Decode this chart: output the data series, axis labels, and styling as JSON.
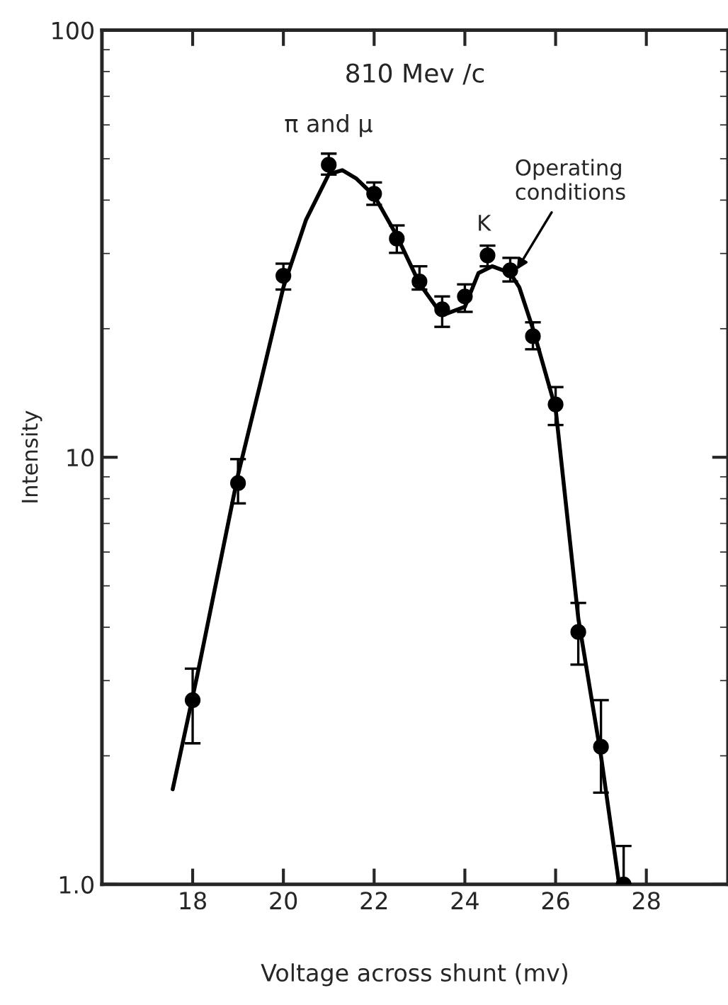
{
  "chart_data": {
    "type": "scatter",
    "title": "810 Mev /c",
    "xlabel": "Voltage across shunt (mv)",
    "ylabel": "Intensity",
    "log": "y",
    "xlim": [
      16,
      29.8
    ],
    "ylim": [
      1.0,
      100
    ],
    "xticks": [
      18,
      20,
      22,
      24,
      26,
      28
    ],
    "yticks": [
      {
        "value": 1,
        "label": "1.0"
      },
      10,
      100
    ],
    "grid": false,
    "legend": false,
    "series": [
      {
        "color": "#000000",
        "marker": "circle",
        "x": [
          18,
          19,
          20,
          21,
          22,
          22.5,
          23,
          23.5,
          24,
          24.5,
          25,
          25.5,
          26,
          26.5,
          27,
          27.5
        ],
        "values": [
          2.7,
          8.7,
          26.6,
          48.4,
          41.4,
          32.5,
          25.8,
          22.2,
          23.8,
          29.7,
          27.4,
          19.2,
          13.3,
          3.9,
          2.1,
          1.0
        ],
        "errors": [
          [
            2.14,
            3.2
          ],
          [
            7.8,
            9.9
          ],
          [
            24.7,
            28.4
          ],
          [
            45.9,
            51.4
          ],
          [
            39,
            44
          ],
          [
            30.1,
            34.9
          ],
          [
            24.7,
            28
          ],
          [
            20.2,
            23.8
          ],
          [
            21.9,
            25.4
          ],
          [
            28,
            31.3
          ],
          [
            25.8,
            29.3
          ],
          [
            17.9,
            20.7
          ],
          [
            11.9,
            14.6
          ],
          [
            3.27,
            4.56
          ],
          [
            1.64,
            2.7
          ],
          [
            1.0,
            1.23
          ]
        ]
      },
      {
        "type": "line",
        "color": "#000000",
        "marker": "none",
        "line_style": "solid",
        "x": [
          17.56,
          18.1,
          19,
          19.5,
          20,
          20.5,
          21,
          21.3,
          21.6,
          22,
          22.5,
          23,
          23.5,
          24,
          24.3,
          24.6,
          25,
          25.2,
          25.5,
          26,
          26.5,
          27,
          27.4
        ],
        "values": [
          1.67,
          3.08,
          9.1,
          15,
          25,
          36,
          46,
          47,
          45,
          41,
          33,
          25.5,
          21.5,
          22.5,
          27,
          28,
          27,
          25,
          20,
          13,
          4.2,
          2.0,
          1.0
        ]
      }
    ],
    "annotations": [
      "π and μ",
      "K",
      {
        "text": "Operating\nconditions",
        "x": 25.1,
        "y": 27
      }
    ]
  }
}
